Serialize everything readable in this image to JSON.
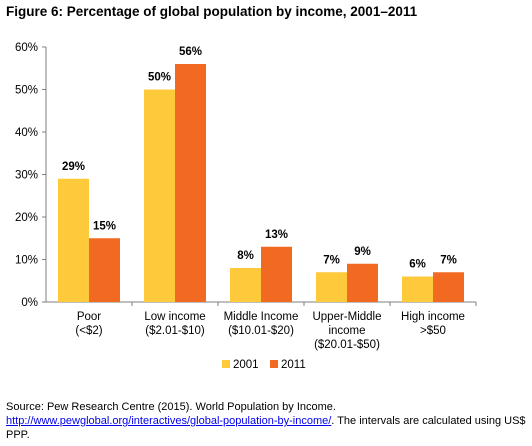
{
  "figure_title": "Figure 6: Percentage of global population by income, 2001–2011",
  "chart_data": {
    "type": "bar",
    "title": "Figure 6: Percentage of global population by income, 2001–2011",
    "categories": [
      [
        "Poor",
        "(<$2)"
      ],
      [
        "Low income",
        "($2.01-$10)"
      ],
      [
        "Middle Income",
        "($10.01-$20)"
      ],
      [
        "Upper-Middle",
        "income",
        "($20.01-$50)"
      ],
      [
        "High income",
        ">$50"
      ]
    ],
    "series": [
      {
        "name": "2001",
        "values": [
          29,
          50,
          8,
          7,
          6
        ],
        "labels": [
          "29%",
          "50%",
          "8%",
          "7%",
          "6%"
        ],
        "color": "#FFC93C"
      },
      {
        "name": "2011",
        "values": [
          15,
          56,
          13,
          9,
          7
        ],
        "labels": [
          "15%",
          "56%",
          "13%",
          "9%",
          "7%"
        ],
        "color": "#F26A21"
      }
    ],
    "ylim": [
      0,
      60
    ],
    "yticks": [
      0,
      10,
      20,
      30,
      40,
      50,
      60
    ],
    "ytick_labels": [
      "0%",
      "10%",
      "20%",
      "30%",
      "40%",
      "50%",
      "60%"
    ],
    "xlabel": "",
    "ylabel": "",
    "grid": false,
    "legend_position": "bottom-center"
  },
  "source": {
    "line1": "Source: Pew Research Centre (2015). World Population by Income.",
    "link": "http://www.pewglobal.org/interactives/global-population-by-income/",
    "line2_rest": ". The intervals are calculated using US$",
    "line3": "PPP."
  }
}
